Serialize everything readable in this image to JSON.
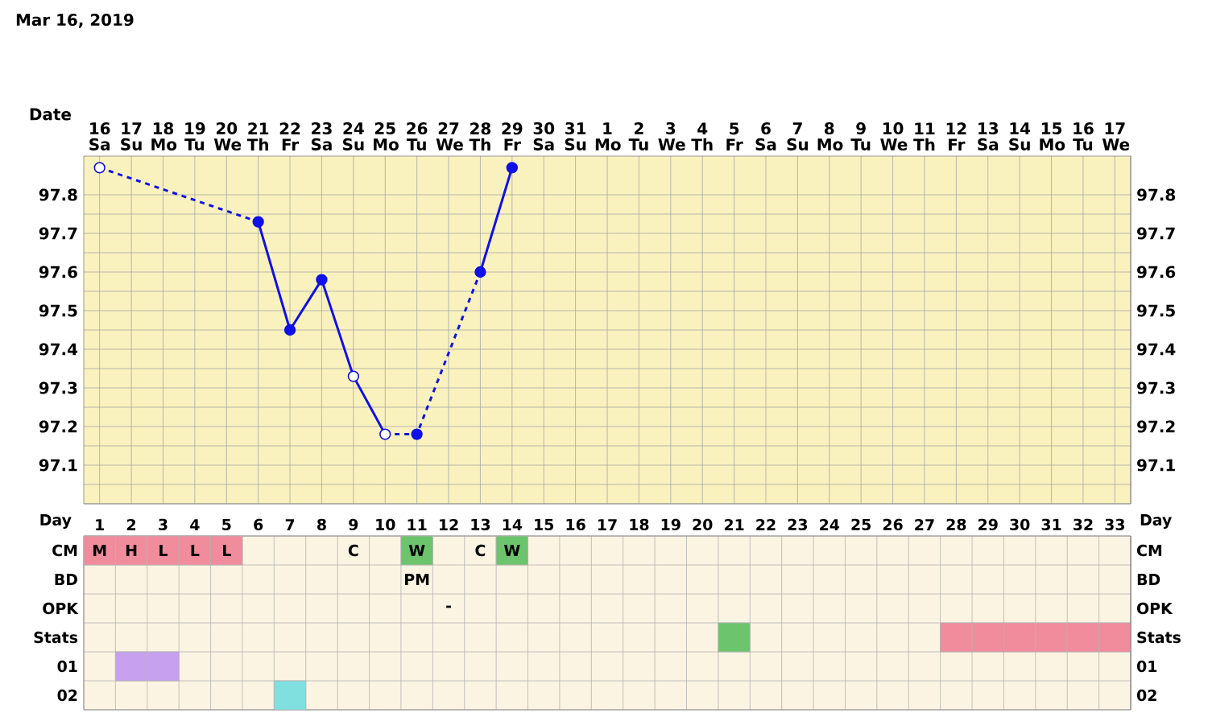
{
  "chart_data": [
    {
      "type": "line",
      "title": "Mar 16, 2019",
      "xlabel": "Date",
      "categories": [
        "16 Sa",
        "17 Su",
        "18 Mo",
        "19 Tu",
        "20 We",
        "21 Th",
        "22 Fr",
        "23 Sa",
        "24 Su",
        "25 Mo",
        "26 Tu",
        "27 We",
        "28 Th",
        "29 Fr",
        "30 Sa",
        "31 Su",
        "1 Mo",
        "2 Tu",
        "3 We",
        "4 Th",
        "5 Fr",
        "6 Sa",
        "7 Su",
        "8 Mo",
        "9 Tu",
        "10 We",
        "11 Th",
        "12 Fr",
        "13 Sa",
        "14 Su",
        "15 Mo",
        "16 Tu",
        "17 We"
      ],
      "ylim": [
        97.0,
        97.9
      ],
      "yticks": [
        {
          "value": 97.0,
          "label": null
        },
        97.1,
        97.2,
        97.3,
        97.4,
        97.5,
        97.6,
        97.7,
        97.8
      ],
      "y2lim": [
        97.0,
        97.9
      ],
      "y2ticks": [
        {
          "value": 97.0,
          "label": null
        },
        97.1,
        97.2,
        97.3,
        97.4,
        97.5,
        97.6,
        97.7,
        97.8
      ],
      "grid": true,
      "series": [
        {
          "type": "line",
          "color": "#1010e8",
          "line_style": "dashed",
          "values": [
            97.87,
            null,
            null,
            null,
            null,
            97.73,
            null,
            null,
            null,
            null,
            null,
            null,
            null,
            null,
            null,
            null,
            null,
            null,
            null,
            null,
            null,
            null,
            null,
            null,
            null,
            null,
            null,
            null,
            null,
            null,
            null,
            null,
            null
          ]
        },
        {
          "type": "line",
          "color": "#1010e8",
          "line_style": "solid",
          "values": [
            null,
            null,
            null,
            null,
            null,
            97.73,
            97.45,
            97.58,
            97.33,
            97.18,
            null,
            null,
            null,
            null,
            null,
            null,
            null,
            null,
            null,
            null,
            null,
            null,
            null,
            null,
            null,
            null,
            null,
            null,
            null,
            null,
            null,
            null,
            null
          ]
        },
        {
          "type": "line",
          "color": "#1010e8",
          "line_style": "dashed",
          "values": [
            null,
            null,
            null,
            null,
            null,
            null,
            null,
            null,
            null,
            97.18,
            97.18,
            null,
            97.6,
            null,
            null,
            null,
            null,
            null,
            null,
            null,
            null,
            null,
            null,
            null,
            null,
            null,
            null,
            null,
            null,
            null,
            null,
            null,
            null
          ]
        },
        {
          "type": "line",
          "color": "#1010e8",
          "line_style": "solid",
          "values": [
            null,
            null,
            null,
            null,
            null,
            null,
            null,
            null,
            null,
            null,
            null,
            null,
            97.6,
            97.87,
            null,
            null,
            null,
            null,
            null,
            null,
            null,
            null,
            null,
            null,
            null,
            null,
            null,
            null,
            null,
            null,
            null,
            null,
            null
          ]
        },
        {
          "type": "scatter",
          "color": "#1010e8",
          "values": [
            null,
            null,
            null,
            null,
            null,
            97.73,
            97.45,
            97.58,
            null,
            null,
            97.18,
            null,
            97.6,
            97.87,
            null,
            null,
            null,
            null,
            null,
            null,
            null,
            null,
            null,
            null,
            null,
            null,
            null,
            null,
            null,
            null,
            null,
            null,
            null
          ]
        },
        {
          "type": "scatter",
          "color": "#ffffff",
          "values": [
            97.87,
            null,
            null,
            null,
            null,
            null,
            null,
            null,
            97.33,
            97.18,
            null,
            null,
            null,
            null,
            null,
            null,
            null,
            null,
            null,
            null,
            null,
            null,
            null,
            null,
            null,
            null,
            null,
            null,
            null,
            null,
            null,
            null,
            null
          ]
        }
      ]
    },
    {
      "type": "heatmap",
      "xlabel": "Day",
      "categories": [
        "1",
        "2",
        "3",
        "4",
        "5",
        "6",
        "7",
        "8",
        "9",
        "10",
        "11",
        "12",
        "13",
        "14",
        "15",
        "16",
        "17",
        "18",
        "19",
        "20",
        "21",
        "22",
        "23",
        "24",
        "25",
        "26",
        "27",
        "28",
        "29",
        "30",
        "31",
        "32",
        "33"
      ],
      "y_categories": [
        "CM",
        "BD",
        "OPK",
        "Stats",
        "01",
        "02"
      ],
      "y2_categories": [
        "CM",
        "BD",
        "OPK",
        "Stats",
        "01",
        "02"
      ],
      "cells": [
        [
          null,
          null,
          null,
          null,
          null,
          null,
          null,
          null,
          null,
          null,
          null,
          null,
          null,
          null,
          null,
          null,
          null,
          null,
          null,
          null,
          null,
          null,
          null,
          null,
          null,
          null,
          null,
          null,
          null,
          null,
          null,
          null,
          null
        ],
        [
          null,
          null,
          null,
          null,
          null,
          null,
          null,
          null,
          null,
          null,
          null,
          null,
          null,
          null,
          null,
          null,
          null,
          null,
          null,
          null,
          null,
          null,
          null,
          null,
          null,
          null,
          null,
          null,
          null,
          null,
          null,
          null,
          null
        ],
        [
          null,
          null,
          null,
          null,
          null,
          null,
          null,
          null,
          null,
          null,
          null,
          null,
          null,
          null,
          null,
          null,
          null,
          null,
          null,
          null,
          null,
          null,
          null,
          null,
          null,
          null,
          null,
          null,
          null,
          null,
          null,
          null,
          null
        ],
        [
          null,
          null,
          null,
          null,
          null,
          null,
          null,
          null,
          null,
          null,
          null,
          null,
          null,
          null,
          null,
          null,
          null,
          null,
          null,
          null,
          null,
          null,
          null,
          null,
          null,
          null,
          null,
          null,
          null,
          null,
          null,
          null,
          null
        ],
        [
          null,
          null,
          null,
          null,
          null,
          null,
          null,
          null,
          null,
          null,
          null,
          null,
          null,
          null,
          null,
          null,
          null,
          null,
          null,
          null,
          null,
          null,
          null,
          null,
          null,
          null,
          null,
          null,
          null,
          null,
          null,
          null,
          null
        ],
        [
          null,
          null,
          null,
          null,
          null,
          null,
          null,
          null,
          null,
          null,
          null,
          null,
          null,
          null,
          null,
          null,
          null,
          null,
          null,
          null,
          null,
          null,
          null,
          null,
          null,
          null,
          null,
          null,
          null,
          null,
          null,
          null,
          null
        ]
      ],
      "colors": [
        [
          "#f08c9c",
          "#f08c9c",
          "#f08c9c",
          "#f08c9c",
          "#f08c9c",
          null,
          null,
          null,
          null,
          null,
          "#6cc46c",
          null,
          null,
          "#6cc46c",
          null,
          null,
          null,
          null,
          null,
          null,
          null,
          null,
          null,
          null,
          null,
          null,
          null,
          null,
          null,
          null,
          null,
          null,
          null
        ],
        [
          null,
          null,
          null,
          null,
          null,
          null,
          null,
          null,
          null,
          null,
          null,
          null,
          null,
          null,
          null,
          null,
          null,
          null,
          null,
          null,
          null,
          null,
          null,
          null,
          null,
          null,
          null,
          null,
          null,
          null,
          null,
          null,
          null
        ],
        [
          null,
          null,
          null,
          null,
          null,
          null,
          null,
          null,
          null,
          null,
          null,
          null,
          null,
          null,
          null,
          null,
          null,
          null,
          null,
          null,
          null,
          null,
          null,
          null,
          null,
          null,
          null,
          null,
          null,
          null,
          null,
          null,
          null
        ],
        [
          null,
          null,
          null,
          null,
          null,
          null,
          null,
          null,
          null,
          null,
          null,
          null,
          null,
          null,
          null,
          null,
          null,
          null,
          null,
          null,
          "#6cc46c",
          null,
          null,
          null,
          null,
          null,
          null,
          "#f08c9c",
          "#f08c9c",
          "#f08c9c",
          "#f08c9c",
          "#f08c9c",
          "#f08c9c"
        ],
        [
          null,
          "#c8a0f0",
          "#c8a0f0",
          null,
          null,
          null,
          null,
          null,
          null,
          null,
          null,
          null,
          null,
          null,
          null,
          null,
          null,
          null,
          null,
          null,
          null,
          null,
          null,
          null,
          null,
          null,
          null,
          null,
          null,
          null,
          null,
          null,
          null
        ],
        [
          null,
          null,
          null,
          null,
          null,
          null,
          "#80e0e0",
          null,
          null,
          null,
          null,
          null,
          null,
          null,
          null,
          null,
          null,
          null,
          null,
          null,
          null,
          null,
          null,
          null,
          null,
          null,
          null,
          null,
          null,
          null,
          null,
          null,
          null
        ]
      ],
      "cell_labels": [
        [
          "M",
          "H",
          "L",
          "L",
          "L",
          null,
          null,
          null,
          "C",
          null,
          "W",
          null,
          "C",
          "W",
          null,
          null,
          null,
          null,
          null,
          null,
          null,
          null,
          null,
          null,
          null,
          null,
          null,
          null,
          null,
          null,
          null,
          null,
          null
        ],
        [
          null,
          null,
          null,
          null,
          null,
          null,
          null,
          null,
          null,
          null,
          "PM",
          null,
          null,
          null,
          null,
          null,
          null,
          null,
          null,
          null,
          null,
          null,
          null,
          null,
          null,
          null,
          null,
          null,
          null,
          null,
          null,
          null,
          null
        ],
        [
          null,
          null,
          null,
          null,
          null,
          null,
          null,
          null,
          null,
          null,
          null,
          "-",
          null,
          null,
          null,
          null,
          null,
          null,
          null,
          null,
          null,
          null,
          null,
          null,
          null,
          null,
          null,
          null,
          null,
          null,
          null,
          null,
          null
        ],
        [
          null,
          null,
          null,
          null,
          null,
          null,
          null,
          null,
          null,
          null,
          null,
          null,
          null,
          null,
          null,
          null,
          null,
          null,
          null,
          null,
          null,
          null,
          null,
          null,
          null,
          null,
          null,
          null,
          null,
          null,
          null,
          null,
          null
        ],
        [
          null,
          null,
          null,
          null,
          null,
          null,
          null,
          null,
          null,
          null,
          null,
          null,
          null,
          null,
          null,
          null,
          null,
          null,
          null,
          null,
          null,
          null,
          null,
          null,
          null,
          null,
          null,
          null,
          null,
          null,
          null,
          null,
          null
        ],
        [
          null,
          null,
          null,
          null,
          null,
          null,
          null,
          null,
          null,
          null,
          null,
          null,
          null,
          null,
          null,
          null,
          null,
          null,
          null,
          null,
          null,
          null,
          null,
          null,
          null,
          null,
          null,
          null,
          null,
          null,
          null,
          null,
          null
        ]
      ]
    }
  ]
}
